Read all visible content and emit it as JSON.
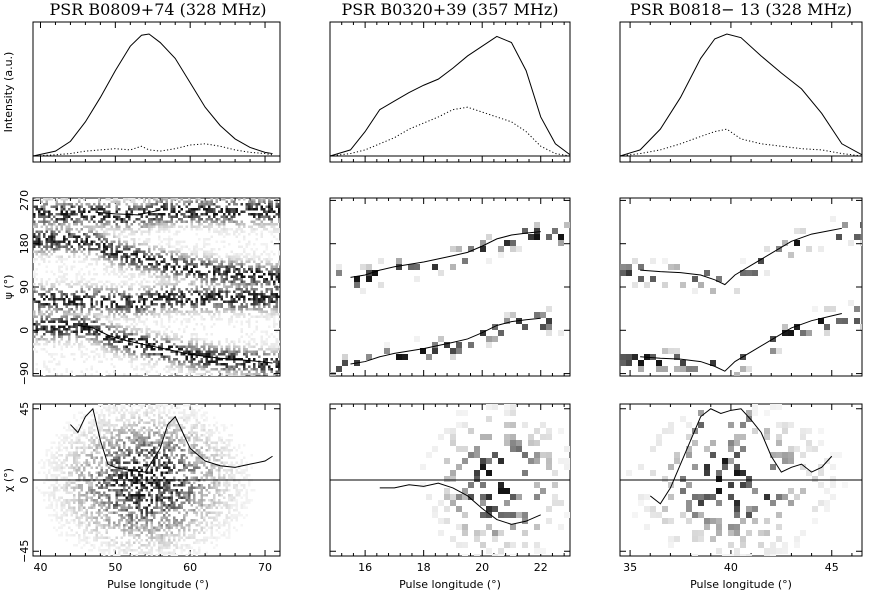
{
  "figure": {
    "titles": [
      "PSR B0809+74 (328 MHz)",
      "PSR B0320+39 (357 MHz)",
      "PSR B0818− 13 (328 MHz)"
    ],
    "ylabels": {
      "top": "Intensity (a.u.)",
      "mid": "ψ (°)",
      "bot": "χ (°)"
    },
    "xlabel": "Pulse longitude (°)"
  },
  "chart_data": [
    {
      "name": "PSR B0809+74 (328 MHz)",
      "xlim": [
        39,
        72
      ],
      "xticks": [
        40,
        50,
        60,
        70
      ],
      "intensity": {
        "type": "line",
        "x": [
          39,
          42,
          44,
          46,
          48,
          50,
          52,
          53.5,
          54.5,
          56,
          58,
          60,
          62,
          64,
          66,
          68,
          70,
          71
        ],
        "total": [
          0.0,
          0.04,
          0.12,
          0.28,
          0.48,
          0.7,
          0.9,
          0.99,
          1.0,
          0.93,
          0.8,
          0.6,
          0.4,
          0.25,
          0.14,
          0.07,
          0.03,
          0.02
        ],
        "linear": [
          0.0,
          0.01,
          0.02,
          0.04,
          0.05,
          0.06,
          0.05,
          0.08,
          0.05,
          0.04,
          0.06,
          0.09,
          0.1,
          0.08,
          0.05,
          0.03,
          0.02,
          0.01
        ]
      },
      "psi": {
        "type": "heatmap",
        "yticks": [
          -90,
          0,
          90,
          180,
          270
        ],
        "ylim": [
          -95,
          275
        ],
        "line": [
          [
            45,
            10
          ],
          [
            47,
            5
          ],
          [
            49,
            -10
          ],
          [
            51,
            -20
          ],
          [
            54,
            -30
          ],
          [
            57,
            -40
          ],
          [
            60,
            -50
          ],
          [
            64,
            -58
          ],
          [
            68,
            -63
          ],
          [
            71,
            -68
          ]
        ],
        "line2": [
          [
            47.5,
            245
          ],
          [
            50,
            242
          ],
          [
            53,
            240
          ],
          [
            56,
            250
          ]
        ]
      },
      "chi": {
        "type": "heatmap",
        "yticks": [
          -45,
          0,
          45
        ],
        "ylim": [
          -48,
          48
        ],
        "line": [
          [
            44,
            35
          ],
          [
            45,
            30
          ],
          [
            46,
            40
          ],
          [
            47,
            45
          ],
          [
            48,
            25
          ],
          [
            49,
            10
          ],
          [
            50,
            8
          ],
          [
            52,
            6
          ],
          [
            54,
            5
          ],
          [
            56,
            20
          ],
          [
            57,
            35
          ],
          [
            58,
            40
          ],
          [
            59,
            30
          ],
          [
            60,
            20
          ],
          [
            62,
            12
          ],
          [
            64,
            9
          ],
          [
            66,
            8
          ],
          [
            68,
            10
          ],
          [
            70,
            12
          ],
          [
            71,
            15
          ]
        ]
      }
    },
    {
      "name": "PSR B0320+39 (357 MHz)",
      "xlim": [
        14.8,
        23
      ],
      "xticks": [
        16,
        18,
        20,
        22
      ],
      "intensity": {
        "type": "line",
        "x": [
          14.8,
          15.5,
          16,
          16.5,
          17,
          17.5,
          18,
          18.5,
          19,
          19.5,
          20,
          20.5,
          21,
          21.5,
          22,
          22.5,
          23
        ],
        "total": [
          0.0,
          0.05,
          0.2,
          0.38,
          0.45,
          0.52,
          0.58,
          0.63,
          0.72,
          0.82,
          0.9,
          0.98,
          0.93,
          0.7,
          0.32,
          0.1,
          0.01
        ],
        "linear": [
          0.0,
          0.02,
          0.05,
          0.1,
          0.15,
          0.22,
          0.27,
          0.32,
          0.38,
          0.4,
          0.36,
          0.32,
          0.28,
          0.2,
          0.08,
          0.02,
          0.0
        ]
      },
      "psi": {
        "type": "heatmap",
        "yticks": [
          -90,
          0,
          90,
          180,
          270
        ],
        "ylim": [
          -95,
          275
        ],
        "line": [
          [
            15.5,
            -70
          ],
          [
            16,
            -65
          ],
          [
            16.5,
            -55
          ],
          [
            17,
            -48
          ],
          [
            18,
            -38
          ],
          [
            19,
            -25
          ],
          [
            19.5,
            -18
          ],
          [
            20,
            -5
          ],
          [
            20.5,
            10
          ],
          [
            21,
            18
          ],
          [
            21.5,
            22
          ],
          [
            22,
            25
          ]
        ],
        "line2": [
          [
            15.5,
            110
          ],
          [
            16,
            115
          ],
          [
            16.5,
            125
          ],
          [
            17,
            132
          ],
          [
            18,
            142
          ],
          [
            19,
            155
          ],
          [
            19.5,
            162
          ],
          [
            20,
            175
          ],
          [
            20.5,
            190
          ],
          [
            21,
            198
          ],
          [
            21.5,
            202
          ],
          [
            22,
            205
          ]
        ]
      },
      "chi": {
        "type": "heatmap",
        "yticks": [
          -45,
          0,
          45
        ],
        "ylim": [
          -48,
          48
        ],
        "line": [
          [
            16.5,
            -5
          ],
          [
            17,
            -5
          ],
          [
            17.5,
            -3
          ],
          [
            18,
            -4
          ],
          [
            18.5,
            -2
          ],
          [
            19,
            -5
          ],
          [
            19.5,
            -10
          ],
          [
            20,
            -18
          ],
          [
            20.5,
            -25
          ],
          [
            21,
            -28
          ],
          [
            21.5,
            -26
          ],
          [
            22,
            -22
          ]
        ]
      }
    },
    {
      "name": "PSR B0818− 13 (328 MHz)",
      "xlim": [
        34.5,
        46.5
      ],
      "xticks": [
        35,
        40,
        45
      ],
      "intensity": {
        "type": "line",
        "x": [
          34.5,
          35.5,
          36.5,
          37.5,
          38.5,
          39.2,
          39.8,
          40.5,
          41.5,
          42.5,
          43.5,
          44.5,
          45.5,
          46.5
        ],
        "total": [
          0.0,
          0.05,
          0.22,
          0.48,
          0.8,
          0.96,
          1.0,
          0.97,
          0.82,
          0.68,
          0.55,
          0.35,
          0.1,
          0.01
        ],
        "linear": [
          0.0,
          0.02,
          0.05,
          0.1,
          0.16,
          0.2,
          0.22,
          0.14,
          0.1,
          0.08,
          0.06,
          0.05,
          0.02,
          0.0
        ]
      },
      "psi": {
        "type": "heatmap",
        "yticks": [
          -90,
          0,
          90,
          180,
          270
        ],
        "ylim": [
          -95,
          275
        ],
        "line": [
          [
            35.5,
            -55
          ],
          [
            36.5,
            -58
          ],
          [
            37.5,
            -60
          ],
          [
            38.5,
            -65
          ],
          [
            39.2,
            -75
          ],
          [
            39.7,
            -85
          ],
          [
            40.2,
            -65
          ],
          [
            41,
            -45
          ],
          [
            42,
            -20
          ],
          [
            43,
            5
          ],
          [
            44,
            20
          ],
          [
            45,
            30
          ],
          [
            45.5,
            35
          ]
        ],
        "line2": [
          [
            35.5,
            125
          ],
          [
            36.5,
            122
          ],
          [
            37.5,
            120
          ],
          [
            38.5,
            115
          ],
          [
            39.2,
            105
          ],
          [
            39.7,
            95
          ],
          [
            40.2,
            115
          ],
          [
            41,
            135
          ],
          [
            42,
            160
          ],
          [
            43,
            185
          ],
          [
            44,
            200
          ],
          [
            45,
            208
          ],
          [
            45.5,
            212
          ]
        ]
      },
      "chi": {
        "type": "heatmap",
        "yticks": [
          -45,
          0,
          45
        ],
        "ylim": [
          -48,
          48
        ],
        "line": [
          [
            36,
            -10
          ],
          [
            36.5,
            -15
          ],
          [
            37,
            -5
          ],
          [
            37.5,
            10
          ],
          [
            38,
            25
          ],
          [
            38.5,
            40
          ],
          [
            39,
            45
          ],
          [
            39.5,
            42
          ],
          [
            40,
            44
          ],
          [
            40.5,
            45
          ],
          [
            41,
            38
          ],
          [
            41.5,
            30
          ],
          [
            42,
            15
          ],
          [
            42.5,
            5
          ],
          [
            43,
            8
          ],
          [
            43.5,
            10
          ],
          [
            44,
            5
          ],
          [
            44.5,
            8
          ],
          [
            45,
            15
          ]
        ]
      }
    }
  ]
}
